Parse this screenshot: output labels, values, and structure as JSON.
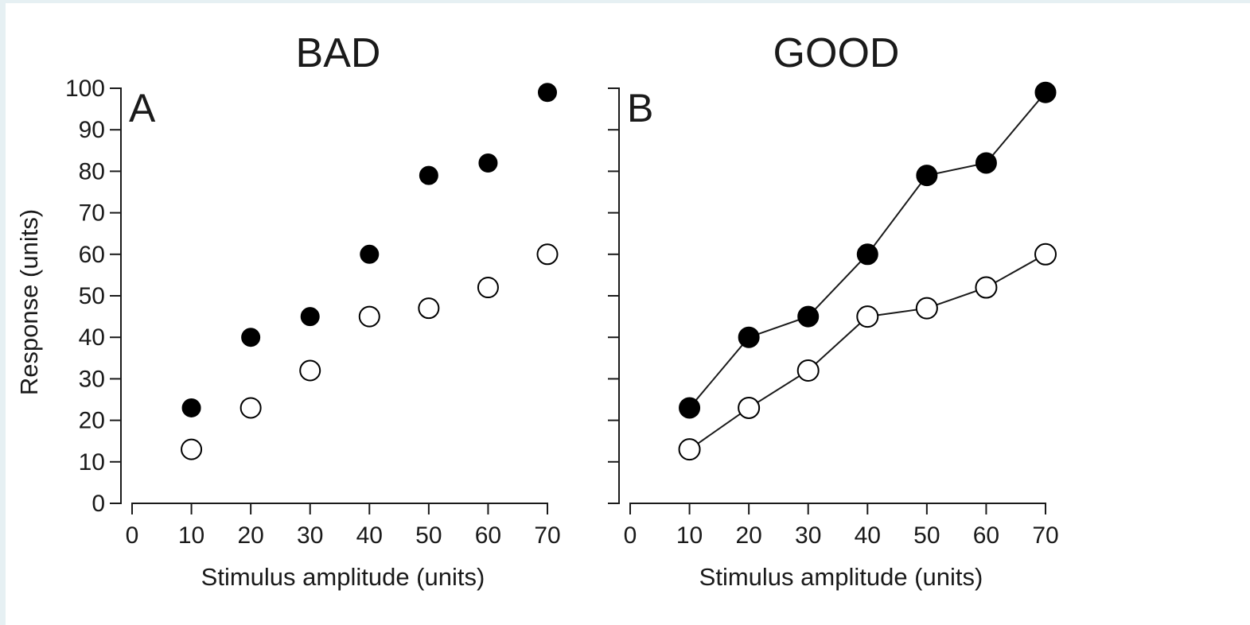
{
  "chart_data": [
    {
      "type": "scatter",
      "title": "BAD",
      "panel_label": "A",
      "xlabel": "Stimulus amplitude (units)",
      "ylabel": "Response (units)",
      "xlim": [
        0,
        70
      ],
      "ylim": [
        0,
        100
      ],
      "xticks": [
        0,
        10,
        20,
        30,
        40,
        50,
        60,
        70
      ],
      "yticks": [
        0,
        10,
        20,
        30,
        40,
        50,
        60,
        70,
        80,
        90,
        100
      ],
      "connected": false,
      "show_ylabel": true,
      "grid": false,
      "series": [
        {
          "marker": "filled",
          "color": "#000000",
          "x": [
            10,
            20,
            30,
            40,
            50,
            60,
            70
          ],
          "y": [
            23,
            40,
            45,
            60,
            79,
            82,
            99
          ]
        },
        {
          "marker": "open",
          "color": "#ffffff",
          "x": [
            10,
            20,
            30,
            40,
            50,
            60,
            70
          ],
          "y": [
            13,
            23,
            32,
            45,
            47,
            52,
            60
          ]
        }
      ]
    },
    {
      "type": "line",
      "title": "GOOD",
      "panel_label": "B",
      "xlabel": "Stimulus amplitude (units)",
      "ylabel": "",
      "xlim": [
        0,
        70
      ],
      "ylim": [
        0,
        100
      ],
      "xticks": [
        0,
        10,
        20,
        30,
        40,
        50,
        60,
        70
      ],
      "yticks": [
        0,
        10,
        20,
        30,
        40,
        50,
        60,
        70,
        80,
        90,
        100
      ],
      "show_ytick_labels": false,
      "connected": true,
      "show_ylabel": false,
      "grid": false,
      "series": [
        {
          "marker": "filled",
          "color": "#000000",
          "x": [
            10,
            20,
            30,
            40,
            50,
            60,
            70
          ],
          "y": [
            23,
            40,
            45,
            60,
            79,
            82,
            99
          ]
        },
        {
          "marker": "open",
          "color": "#ffffff",
          "x": [
            10,
            20,
            30,
            40,
            50,
            60,
            70
          ],
          "y": [
            13,
            23,
            32,
            45,
            47,
            52,
            60
          ]
        }
      ]
    }
  ],
  "colors": {
    "ink": "#1a1a1a",
    "background": "#ffffff",
    "frame_tint": "#e6f0f3"
  }
}
